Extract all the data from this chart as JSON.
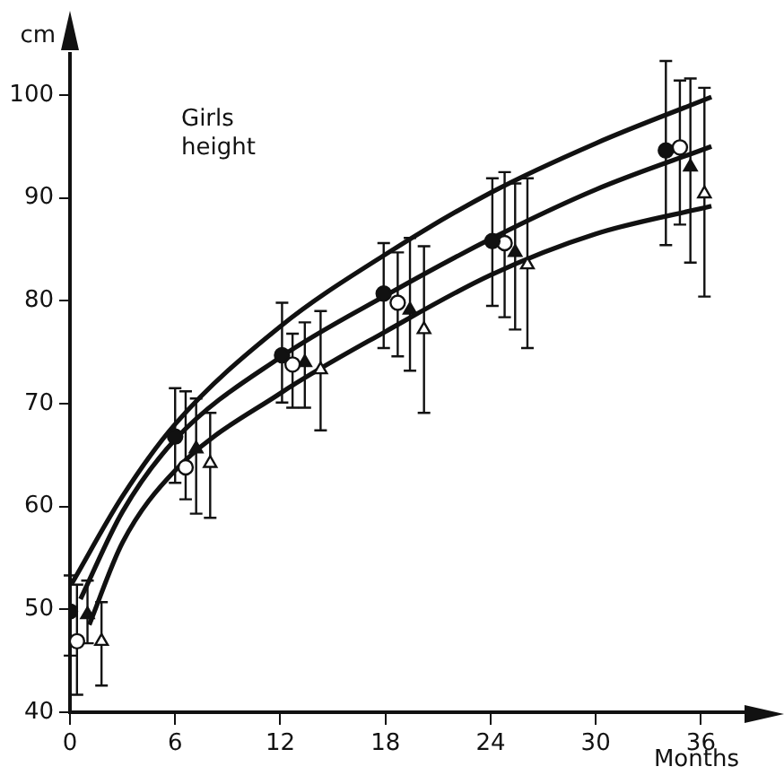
{
  "chart_data": {
    "type": "scatter",
    "xlabel": "Months",
    "ylabel": "cm",
    "annotations": [
      "Girls\nheight"
    ],
    "xlim": [
      0,
      39
    ],
    "xticks": [
      0,
      6,
      12,
      18,
      24,
      30,
      36
    ],
    "ylim": [
      40,
      104
    ],
    "yticks": [
      40,
      50,
      60,
      70,
      80,
      90,
      100
    ],
    "grid": false,
    "legend": false,
    "series": [
      {
        "type": "line",
        "color": "#111111",
        "marker": "none",
        "x": [
          0.1,
          3,
          6,
          12,
          18,
          24,
          30,
          36.6
        ],
        "values": [
          52.5,
          61,
          68,
          77.5,
          84.5,
          90.5,
          95.3,
          99.8
        ]
      },
      {
        "type": "line",
        "color": "#111111",
        "marker": "none",
        "x": [
          0.6,
          3,
          6,
          12,
          18,
          24,
          30,
          36.6
        ],
        "values": [
          51,
          59.5,
          66.5,
          74.5,
          80.5,
          86,
          90.8,
          95
        ]
      },
      {
        "type": "line",
        "color": "#111111",
        "marker": "none",
        "x": [
          1.1,
          3,
          6,
          12,
          18,
          24,
          30,
          36.6
        ],
        "values": [
          48.5,
          56.5,
          63.5,
          71,
          77,
          82.5,
          86.5,
          89.2
        ]
      },
      {
        "color": "#111111",
        "marker": "circle",
        "x": [
          0,
          6,
          12.1,
          17.9,
          24.1,
          34
        ],
        "values": [
          49.8,
          66.8,
          74.7,
          80.7,
          85.8,
          94.6
        ],
        "errors": [
          [
            45.5,
            53.3
          ],
          [
            62.3,
            71.5
          ],
          [
            70.1,
            79.8
          ],
          [
            75.4,
            85.6
          ],
          [
            79.5,
            91.9
          ],
          [
            85.4,
            103.3
          ]
        ]
      },
      {
        "color": "#ffffff",
        "marker": "circle",
        "x": [
          0.4,
          6.6,
          12.7,
          18.7,
          24.8,
          34.8
        ],
        "values": [
          46.9,
          63.8,
          73.8,
          79.8,
          85.6,
          94.9
        ],
        "errors": [
          [
            41.7,
            52.4
          ],
          [
            60.7,
            71.2
          ],
          [
            69.6,
            76.8
          ],
          [
            74.6,
            84.7
          ],
          [
            78.4,
            92.5
          ],
          [
            87.4,
            101.4
          ]
        ]
      },
      {
        "color": "#111111",
        "marker": "triangle",
        "x": [
          1,
          7.2,
          13.4,
          19.4,
          25.4,
          35.4
        ],
        "values": [
          49.5,
          65.6,
          74,
          79.1,
          84.7,
          93
        ],
        "errors": [
          [
            46.7,
            52.8
          ],
          [
            59.3,
            70.5
          ],
          [
            69.6,
            77.9
          ],
          [
            73.2,
            86.1
          ],
          [
            77.2,
            91.4
          ],
          [
            83.7,
            101.6
          ]
        ]
      },
      {
        "color": "#ffffff",
        "marker": "triangle",
        "x": [
          1.8,
          8,
          14.3,
          20.2,
          26.1,
          36.2
        ],
        "values": [
          46.9,
          64.2,
          73.3,
          77.2,
          83.5,
          90.4
        ],
        "errors": [
          [
            42.6,
            50.7
          ],
          [
            58.9,
            69.1
          ],
          [
            67.4,
            79
          ],
          [
            69.1,
            85.3
          ],
          [
            75.4,
            91.9
          ],
          [
            80.4,
            100.7
          ]
        ]
      }
    ]
  }
}
